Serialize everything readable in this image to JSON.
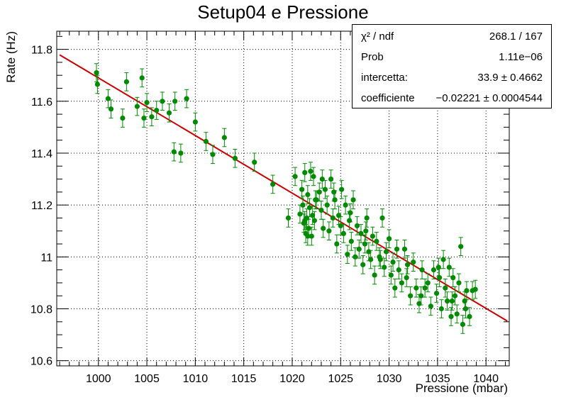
{
  "title": "Setup04 e Pressione",
  "stats": [
    {
      "name": "χ² / ndf",
      "value": "268.1 / 167"
    },
    {
      "name": "Prob",
      "value": "1.11e−06"
    },
    {
      "name": "intercetta:",
      "value": "33.9 ± 0.4662"
    },
    {
      "name": "coefficiente",
      "value": "−0.02221 ± 0.0004544"
    }
  ],
  "chart_data": {
    "type": "scatter",
    "title": "Setup04 e Pressione",
    "xlabel": "Pressione (mbar)",
    "ylabel": "Rate (Hz)",
    "xlim": [
      995.7,
      1042.4
    ],
    "ylim": [
      10.58,
      11.87
    ],
    "xticks": [
      1000,
      1005,
      1010,
      1015,
      1020,
      1025,
      1030,
      1035,
      1040
    ],
    "yticks": [
      10.6,
      10.8,
      11.0,
      11.2,
      11.4,
      11.6,
      11.8
    ],
    "xtick_labels": [
      "1000",
      "1005",
      "1010",
      "1015",
      "1020",
      "1025",
      "1030",
      "1035",
      "1040"
    ],
    "ytick_labels": [
      "10.6",
      "10.8",
      "11",
      "11.2",
      "11.4",
      "11.6",
      "11.8"
    ],
    "grid": true,
    "series": [
      {
        "marker_color": "#008a00",
        "error_y": 0.035,
        "points": [
          [
            999.8,
            11.71
          ],
          [
            999.9,
            11.665
          ],
          [
            1001.0,
            11.61
          ],
          [
            1001.3,
            11.57
          ],
          [
            1002.5,
            11.535
          ],
          [
            1002.9,
            11.675
          ],
          [
            1004.0,
            11.58
          ],
          [
            1004.5,
            11.69
          ],
          [
            1004.7,
            11.535
          ],
          [
            1005.0,
            11.595
          ],
          [
            1005.5,
            11.54
          ],
          [
            1006.0,
            11.565
          ],
          [
            1006.6,
            11.6
          ],
          [
            1007.3,
            11.555
          ],
          [
            1007.9,
            11.6
          ],
          [
            1007.8,
            11.405
          ],
          [
            1008.5,
            11.4
          ],
          [
            1009.1,
            11.61
          ],
          [
            1010.0,
            11.52
          ],
          [
            1011.1,
            11.445
          ],
          [
            1011.8,
            11.395
          ],
          [
            1013.0,
            11.46
          ],
          [
            1014.1,
            11.38
          ],
          [
            1016.1,
            11.365
          ],
          [
            1018.0,
            11.28
          ],
          [
            1019.6,
            11.15
          ],
          [
            1020.3,
            11.31
          ],
          [
            1020.8,
            11.165
          ],
          [
            1021.0,
            11.26
          ],
          [
            1021.1,
            11.2
          ],
          [
            1021.2,
            11.13
          ],
          [
            1021.3,
            11.325
          ],
          [
            1021.4,
            11.09
          ],
          [
            1021.5,
            11.15
          ],
          [
            1021.6,
            11.24
          ],
          [
            1021.7,
            11.11
          ],
          [
            1021.8,
            11.19
          ],
          [
            1021.9,
            11.33
          ],
          [
            1022.0,
            11.08
          ],
          [
            1022.1,
            11.16
          ],
          [
            1022.2,
            11.31
          ],
          [
            1022.3,
            11.14
          ],
          [
            1022.5,
            11.22
          ],
          [
            1022.8,
            11.25
          ],
          [
            1023.0,
            11.18
          ],
          [
            1023.2,
            11.11
          ],
          [
            1023.4,
            11.26
          ],
          [
            1023.6,
            11.2
          ],
          [
            1023.8,
            11.1
          ],
          [
            1024.0,
            11.3
          ],
          [
            1024.2,
            11.15
          ],
          [
            1024.4,
            11.22
          ],
          [
            1024.6,
            11.05
          ],
          [
            1024.8,
            11.16
          ],
          [
            1025.0,
            11.12
          ],
          [
            1025.1,
            11.26
          ],
          [
            1025.3,
            11.09
          ],
          [
            1025.5,
            11.2
          ],
          [
            1025.7,
            11.01
          ],
          [
            1025.9,
            11.14
          ],
          [
            1026.1,
            11.06
          ],
          [
            1026.3,
            11.22
          ],
          [
            1026.5,
            11.0
          ],
          [
            1026.7,
            11.12
          ],
          [
            1026.9,
            11.03
          ],
          [
            1027.1,
            11.09
          ],
          [
            1027.3,
            10.97
          ],
          [
            1027.5,
            11.05
          ],
          [
            1027.7,
            11.15
          ],
          [
            1027.9,
            11.02
          ],
          [
            1028.1,
            10.99
          ],
          [
            1028.3,
            11.08
          ],
          [
            1028.5,
            10.93
          ],
          [
            1028.7,
            11.06
          ],
          [
            1029.0,
            11.0
          ],
          [
            1029.3,
            11.15
          ],
          [
            1029.5,
            10.96
          ],
          [
            1029.7,
            11.02
          ],
          [
            1030.0,
            11.07
          ],
          [
            1030.2,
            10.93
          ],
          [
            1030.4,
            10.98
          ],
          [
            1030.6,
            10.88
          ],
          [
            1030.8,
            11.03
          ],
          [
            1031.0,
            10.95
          ],
          [
            1031.3,
            10.9
          ],
          [
            1031.6,
            11.03
          ],
          [
            1031.9,
            10.97
          ],
          [
            1032.2,
            10.85
          ],
          [
            1032.5,
            10.98
          ],
          [
            1032.8,
            10.88
          ],
          [
            1033.1,
            10.82
          ],
          [
            1033.4,
            10.95
          ],
          [
            1033.7,
            10.88
          ],
          [
            1034.0,
            10.9
          ],
          [
            1034.3,
            10.81
          ],
          [
            1034.6,
            10.95
          ],
          [
            1034.9,
            10.86
          ],
          [
            1035.2,
            10.92
          ],
          [
            1035.4,
            10.8
          ],
          [
            1035.6,
            10.99
          ],
          [
            1035.8,
            10.88
          ],
          [
            1036.0,
            10.83
          ],
          [
            1036.2,
            10.96
          ],
          [
            1036.4,
            10.77
          ],
          [
            1036.6,
            10.92
          ],
          [
            1036.8,
            10.85
          ],
          [
            1037.0,
            10.78
          ],
          [
            1037.2,
            10.9
          ],
          [
            1037.4,
            11.04
          ],
          [
            1037.6,
            10.74
          ],
          [
            1037.8,
            10.83
          ],
          [
            1038.0,
            10.87
          ],
          [
            1038.3,
            10.77
          ],
          [
            1038.6,
            10.87
          ],
          [
            1021.3,
            11.14
          ],
          [
            1021.6,
            11.08
          ],
          [
            1022.4,
            11.22
          ],
          [
            1023.1,
            11.3
          ],
          [
            1024.3,
            11.25
          ],
          [
            1026.0,
            11.17
          ],
          [
            1027.6,
            11.1
          ],
          [
            1029.1,
            10.99
          ],
          [
            1031.8,
            10.92
          ],
          [
            1033.3,
            10.85
          ],
          [
            1035.1,
            10.96
          ],
          [
            1036.5,
            10.83
          ],
          [
            1037.9,
            10.8
          ],
          [
            1038.9,
            10.875
          ]
        ]
      },
      {
        "name": "fit",
        "color": "#cc0000",
        "type": "line",
        "slope": -0.02221,
        "intercept": 33.9,
        "x_range": [
          996.0,
          1042.2
        ]
      }
    ]
  }
}
